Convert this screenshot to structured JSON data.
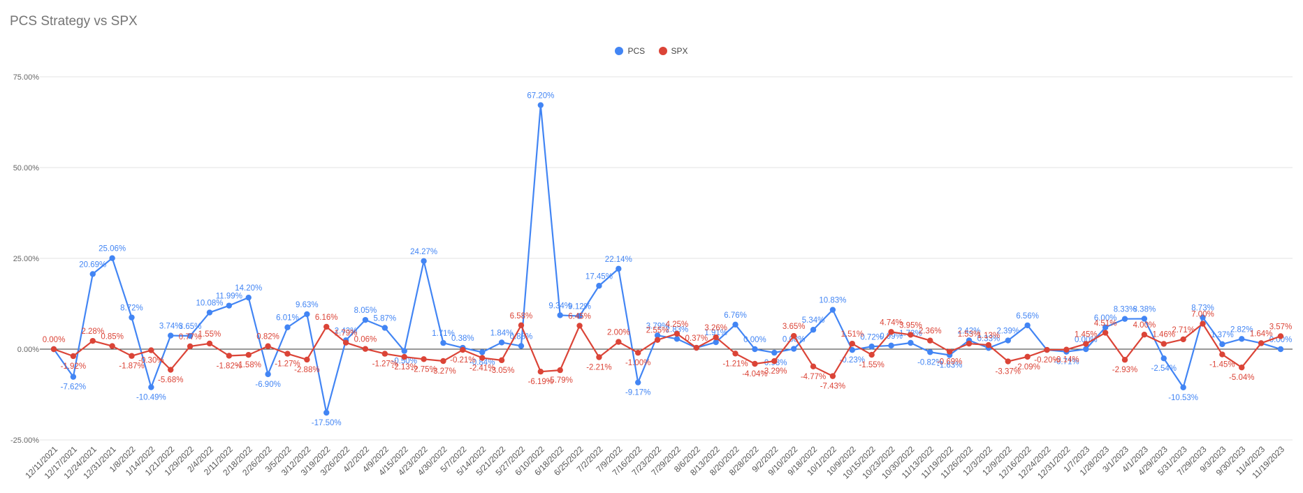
{
  "chart_data": {
    "type": "line",
    "title": "PCS Strategy vs SPX",
    "xlabel": "",
    "ylabel": "",
    "ylim": [
      -25,
      75
    ],
    "yticks": [
      "75.00%",
      "50.00%",
      "25.00%",
      "0.00%",
      "-25.00%"
    ],
    "categories": [
      "12/11/2021",
      "12/17/2021",
      "12/24/2021",
      "12/31/2021",
      "1/8/2022",
      "1/14/2022",
      "1/21/2022",
      "1/29/2022",
      "2/4/2022",
      "2/11/2022",
      "2/18/2022",
      "2/26/2022",
      "3/5/2022",
      "3/12/2022",
      "3/19/2022",
      "3/26/2022",
      "4/2/2022",
      "4/9/2022",
      "4/15/2022",
      "4/23/2022",
      "4/30/2022",
      "5/7/2022",
      "5/14/2022",
      "5/21/2022",
      "5/27/2022",
      "6/10/2022",
      "6/18/2022",
      "6/25/2022",
      "7/2/2022",
      "7/9/2022",
      "7/16/2022",
      "7/23/2022",
      "7/29/2022",
      "8/6/2022",
      "8/13/2022",
      "8/20/2022",
      "8/28/2022",
      "9/2/2022",
      "9/10/2022",
      "9/18/2022",
      "10/1/2022",
      "10/9/2022",
      "10/15/2022",
      "10/23/2022",
      "10/30/2022",
      "11/13/2022",
      "11/19/2022",
      "11/26/2022",
      "12/3/2022",
      "12/9/2022",
      "12/16/2022",
      "12/24/2022",
      "12/31/2022",
      "1/7/2023",
      "1/28/2023",
      "3/1/2023",
      "4/1/2023",
      "4/29/2023",
      "5/31/2023",
      "7/29/2023",
      "9/3/2023",
      "9/30/2023",
      "11/4/2023",
      "11/19/2023"
    ],
    "series": [
      {
        "name": "PCS",
        "color": "#4285F4",
        "values": [
          0.0,
          -7.62,
          20.69,
          25.06,
          8.72,
          -10.49,
          3.74,
          3.65,
          10.08,
          11.99,
          14.2,
          -6.9,
          6.01,
          9.63,
          -17.5,
          2.43,
          8.05,
          5.87,
          -0.5,
          24.27,
          1.71,
          0.38,
          -0.84,
          1.84,
          0.88,
          67.2,
          9.34,
          9.12,
          17.45,
          22.14,
          -9.17,
          3.79,
          2.83,
          0.37,
          1.91,
          6.76,
          0.0,
          -0.98,
          0.08,
          5.34,
          10.83,
          -0.23,
          0.72,
          0.99,
          1.73,
          -0.82,
          -1.63,
          2.42,
          0.33,
          2.39,
          6.56,
          -0.2,
          -0.71,
          0.0,
          6.0,
          8.33,
          8.38,
          -2.54,
          -10.53,
          8.73,
          1.37,
          2.82,
          1.64,
          0.0
        ],
        "labels": [
          "",
          "-7.62%",
          "20.69%",
          "25.06%",
          "8.72%",
          "-10.49%",
          "3.74%",
          "3.65%",
          "10.08%",
          "11.99%",
          "14.20%",
          "-6.90%",
          "6.01%",
          "9.63%",
          "-17.50%",
          "2.43%",
          "8.05%",
          "5.87%",
          "-0.50%",
          "24.27%",
          "1.71%",
          "0.38%",
          "-0.84%",
          "1.84%",
          "0.88%",
          "67.20%",
          "9.34%",
          "9.12%",
          "17.45%",
          "22.14%",
          "-9.17%",
          "3.79%",
          "2.83%",
          "",
          "1.91%",
          "6.76%",
          "0.00%",
          "-0.98%",
          "0.08%",
          "5.34%",
          "10.83%",
          "-0.23%",
          "0.72%",
          "0.99%",
          "1.73%",
          "-0.82%",
          "-1.63%",
          "2.42%",
          "0.33%",
          "2.39%",
          "6.56%",
          "",
          "-0.71%",
          "0.00%",
          "6.00%",
          "8.33%",
          "8.38%",
          "-2.54%",
          "-10.53%",
          "8.73%",
          "1.37%",
          "2.82%",
          "",
          "0.00%"
        ]
      },
      {
        "name": "SPX",
        "color": "#DB4437",
        "values": [
          0.0,
          -1.92,
          2.28,
          0.85,
          -1.87,
          -0.3,
          -5.68,
          0.77,
          1.55,
          -1.82,
          -1.58,
          0.82,
          -1.27,
          -2.88,
          6.16,
          1.79,
          0.06,
          -1.27,
          -2.13,
          -2.75,
          -3.27,
          -0.21,
          -2.41,
          -3.05,
          6.58,
          -6.19,
          -5.79,
          6.45,
          -2.21,
          2.0,
          -1.0,
          2.55,
          4.25,
          0.37,
          3.26,
          -1.21,
          -4.04,
          -3.29,
          3.65,
          -4.77,
          -7.43,
          1.51,
          -1.55,
          4.74,
          3.95,
          2.36,
          -0.69,
          1.53,
          1.13,
          -3.37,
          -2.09,
          -0.2,
          -0.14,
          1.45,
          4.51,
          -2.93,
          4.0,
          1.46,
          2.71,
          7.0,
          -1.45,
          -5.04,
          1.64,
          3.57
        ],
        "labels": [
          "0.00%",
          "-1.92%",
          "2.28%",
          "0.85%",
          "-1.87%",
          "-0.30%",
          "-5.68%",
          "0.77%",
          "1.55%",
          "-1.82%",
          "-1.58%",
          "0.82%",
          "-1.27%",
          "-2.88%",
          "6.16%",
          "1.79%",
          "0.06%",
          "-1.27%",
          "-2.13%",
          "-2.75%",
          "-3.27%",
          "-0.21%",
          "-2.41%",
          "-3.05%",
          "6.58%",
          "-6.19%",
          "-5.79%",
          "6.45%",
          "-2.21%",
          "2.00%",
          "-1.00%",
          "2.55%",
          "4.25%",
          "0.37%",
          "3.26%",
          "-1.21%",
          "-4.04%",
          "-3.29%",
          "3.65%",
          "-4.77%",
          "-7.43%",
          "1.51%",
          "-1.55%",
          "4.74%",
          "3.95%",
          "2.36%",
          "-0.69%",
          "1.53%",
          "1.13%",
          "-3.37%",
          "-2.09%",
          "-0.20%",
          "-0.14%",
          "1.45%",
          "4.51%",
          "-2.93%",
          "4.00%",
          "1.46%",
          "2.71%",
          "7.00%",
          "-1.45%",
          "-5.04%",
          "1.64%",
          "3.57%"
        ]
      }
    ],
    "grid": true,
    "legend": "top-center"
  }
}
